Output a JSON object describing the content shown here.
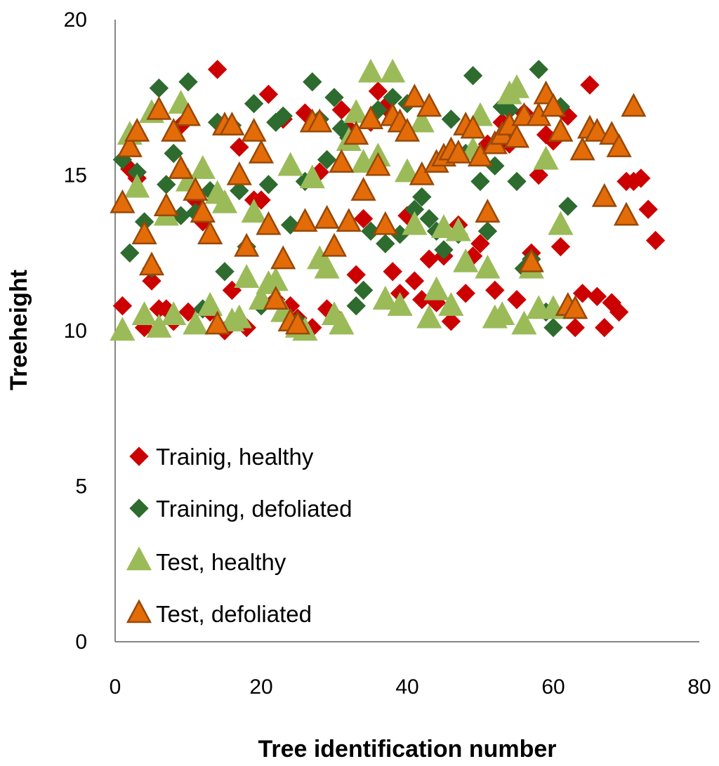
{
  "chart_data": {
    "type": "scatter",
    "title": "",
    "xlabel": "Tree identification number",
    "ylabel": "Treeheight",
    "xlim": [
      0,
      80
    ],
    "ylim": [
      0,
      20
    ],
    "xticks": [
      0,
      20,
      40,
      60,
      80
    ],
    "yticks": [
      0,
      5,
      10,
      15,
      20
    ],
    "grid": false,
    "legend_position": "inside-lower-left",
    "series": [
      {
        "name": "Trainig, healthy",
        "marker": "diamond",
        "color": "#cc0000",
        "points": [
          [
            1,
            10.8
          ],
          [
            2,
            15.2
          ],
          [
            3,
            14.9
          ],
          [
            4,
            10.1
          ],
          [
            5,
            11.6
          ],
          [
            6,
            10.7
          ],
          [
            7,
            10.7
          ],
          [
            8,
            10.3
          ],
          [
            9,
            16.6
          ],
          [
            10,
            10.6
          ],
          [
            11,
            14.2
          ],
          [
            12,
            13.5
          ],
          [
            13,
            10.6
          ],
          [
            14,
            18.4
          ],
          [
            15,
            10.0
          ],
          [
            16,
            11.3
          ],
          [
            17,
            15.9
          ],
          [
            18,
            10.1
          ],
          [
            19,
            14.2
          ],
          [
            20,
            14.2
          ],
          [
            21,
            17.6
          ],
          [
            22,
            11.0
          ],
          [
            23,
            16.8
          ],
          [
            24,
            10.8
          ],
          [
            25,
            10.4
          ],
          [
            26,
            17.0
          ],
          [
            27,
            10.1
          ],
          [
            28,
            15.1
          ],
          [
            29,
            10.7
          ],
          [
            30,
            10.5
          ],
          [
            31,
            17.1
          ],
          [
            32,
            16.5
          ],
          [
            33,
            11.8
          ],
          [
            34,
            13.6
          ],
          [
            35,
            16.7
          ],
          [
            36,
            17.7
          ],
          [
            37,
            17.2
          ],
          [
            38,
            11.9
          ],
          [
            39,
            11.2
          ],
          [
            40,
            13.7
          ],
          [
            41,
            11.6
          ],
          [
            42,
            11.0
          ],
          [
            43,
            12.3
          ],
          [
            44,
            10.9
          ],
          [
            45,
            12.4
          ],
          [
            46,
            10.3
          ],
          [
            47,
            13.4
          ],
          [
            48,
            11.2
          ],
          [
            49,
            12.4
          ],
          [
            50,
            12.8
          ],
          [
            51,
            16.0
          ],
          [
            52,
            11.3
          ],
          [
            53,
            16.7
          ],
          [
            54,
            16.0
          ],
          [
            55,
            11.0
          ],
          [
            56,
            17.0
          ],
          [
            57,
            12.5
          ],
          [
            58,
            15.0
          ],
          [
            59,
            16.3
          ],
          [
            60,
            16.1
          ],
          [
            61,
            12.7
          ],
          [
            62,
            16.9
          ],
          [
            63,
            10.1
          ],
          [
            64,
            11.2
          ],
          [
            65,
            17.9
          ],
          [
            66,
            11.1
          ],
          [
            67,
            10.1
          ],
          [
            68,
            10.9
          ],
          [
            69,
            10.6
          ],
          [
            70,
            14.8
          ],
          [
            71,
            14.8
          ],
          [
            72,
            14.9
          ],
          [
            73,
            13.9
          ],
          [
            74,
            12.9
          ]
        ]
      },
      {
        "name": "Training, defoliated",
        "marker": "diamond",
        "color": "#2e6b2e",
        "points": [
          [
            1,
            15.5
          ],
          [
            2,
            12.5
          ],
          [
            3,
            15.1
          ],
          [
            4,
            13.5
          ],
          [
            5,
            12.0
          ],
          [
            6,
            17.8
          ],
          [
            7,
            14.7
          ],
          [
            8,
            15.7
          ],
          [
            9,
            13.7
          ],
          [
            10,
            18.0
          ],
          [
            11,
            13.8
          ],
          [
            12,
            10.7
          ],
          [
            13,
            14.5
          ],
          [
            14,
            16.7
          ],
          [
            15,
            11.9
          ],
          [
            16,
            16.6
          ],
          [
            17,
            14.5
          ],
          [
            18,
            12.7
          ],
          [
            19,
            17.3
          ],
          [
            20,
            10.8
          ],
          [
            21,
            14.7
          ],
          [
            22,
            16.7
          ],
          [
            23,
            16.9
          ],
          [
            24,
            13.4
          ],
          [
            25,
            10.3
          ],
          [
            26,
            14.8
          ],
          [
            27,
            18.0
          ],
          [
            28,
            16.8
          ],
          [
            29,
            15.5
          ],
          [
            30,
            17.5
          ],
          [
            31,
            16.5
          ],
          [
            32,
            16.2
          ],
          [
            33,
            10.8
          ],
          [
            34,
            11.3
          ],
          [
            35,
            13.2
          ],
          [
            36,
            17.1
          ],
          [
            37,
            12.8
          ],
          [
            38,
            17.5
          ],
          [
            39,
            13.1
          ],
          [
            40,
            17.3
          ],
          [
            41,
            13.9
          ],
          [
            42,
            14.3
          ],
          [
            43,
            13.6
          ],
          [
            44,
            13.2
          ],
          [
            45,
            12.6
          ],
          [
            46,
            16.8
          ],
          [
            47,
            13.1
          ],
          [
            48,
            15.7
          ],
          [
            49,
            18.2
          ],
          [
            50,
            14.8
          ],
          [
            51,
            13.2
          ],
          [
            52,
            15.3
          ],
          [
            53,
            17.2
          ],
          [
            54,
            17.1
          ],
          [
            55,
            14.8
          ],
          [
            56,
            12.0
          ],
          [
            57,
            12.3
          ],
          [
            58,
            18.4
          ],
          [
            59,
            10.6
          ],
          [
            60,
            10.1
          ],
          [
            61,
            17.2
          ],
          [
            62,
            14.0
          ]
        ]
      },
      {
        "name": "Test, healthy",
        "marker": "triangle",
        "color": "#9bbb59",
        "points": [
          [
            1,
            10.0
          ],
          [
            2,
            16.3
          ],
          [
            3,
            14.6
          ],
          [
            4,
            10.5
          ],
          [
            5,
            17.0
          ],
          [
            6,
            10.1
          ],
          [
            7,
            13.7
          ],
          [
            8,
            10.5
          ],
          [
            9,
            17.3
          ],
          [
            10,
            14.8
          ],
          [
            11,
            10.2
          ],
          [
            12,
            15.2
          ],
          [
            13,
            10.8
          ],
          [
            14,
            14.4
          ],
          [
            15,
            14.1
          ],
          [
            16,
            10.3
          ],
          [
            17,
            10.4
          ],
          [
            18,
            11.7
          ],
          [
            19,
            13.8
          ],
          [
            20,
            11.0
          ],
          [
            21,
            11.5
          ],
          [
            22,
            11.6
          ],
          [
            23,
            10.6
          ],
          [
            24,
            15.3
          ],
          [
            25,
            10.1
          ],
          [
            26,
            10.0
          ],
          [
            27,
            14.9
          ],
          [
            28,
            12.3
          ],
          [
            29,
            12.0
          ],
          [
            30,
            10.5
          ],
          [
            31,
            10.2
          ],
          [
            32,
            16.1
          ],
          [
            33,
            17.0
          ],
          [
            34,
            15.4
          ],
          [
            35,
            18.3
          ],
          [
            36,
            15.6
          ],
          [
            37,
            11.0
          ],
          [
            38,
            18.3
          ],
          [
            39,
            10.8
          ],
          [
            40,
            15.1
          ],
          [
            41,
            13.4
          ],
          [
            42,
            16.7
          ],
          [
            43,
            10.4
          ],
          [
            44,
            11.3
          ],
          [
            45,
            13.3
          ],
          [
            46,
            10.8
          ],
          [
            47,
            13.2
          ],
          [
            48,
            12.2
          ],
          [
            49,
            15.8
          ],
          [
            50,
            16.9
          ],
          [
            51,
            12.0
          ],
          [
            52,
            10.4
          ],
          [
            53,
            10.5
          ],
          [
            54,
            17.6
          ],
          [
            55,
            17.8
          ],
          [
            56,
            10.2
          ],
          [
            57,
            12.0
          ],
          [
            58,
            10.7
          ],
          [
            59,
            15.5
          ],
          [
            60,
            10.7
          ],
          [
            61,
            13.4
          ]
        ]
      },
      {
        "name": "Test, defoliated",
        "marker": "triangle",
        "color": "#e36c09",
        "points": [
          [
            1,
            14.1
          ],
          [
            2,
            15.9
          ],
          [
            3,
            16.4
          ],
          [
            4,
            13.1
          ],
          [
            5,
            12.1
          ],
          [
            6,
            17.1
          ],
          [
            7,
            14.0
          ],
          [
            8,
            16.4
          ],
          [
            9,
            15.2
          ],
          [
            10,
            16.9
          ],
          [
            11,
            14.5
          ],
          [
            12,
            13.8
          ],
          [
            13,
            13.1
          ],
          [
            14,
            10.2
          ],
          [
            15,
            16.6
          ],
          [
            16,
            16.6
          ],
          [
            17,
            15.0
          ],
          [
            18,
            12.7
          ],
          [
            19,
            16.4
          ],
          [
            20,
            15.7
          ],
          [
            21,
            13.4
          ],
          [
            22,
            11.0
          ],
          [
            23,
            12.3
          ],
          [
            24,
            10.3
          ],
          [
            25,
            10.2
          ],
          [
            26,
            13.5
          ],
          [
            27,
            16.7
          ],
          [
            28,
            16.7
          ],
          [
            29,
            13.6
          ],
          [
            30,
            12.7
          ],
          [
            31,
            15.4
          ],
          [
            32,
            13.5
          ],
          [
            33,
            16.3
          ],
          [
            34,
            14.5
          ],
          [
            35,
            16.8
          ],
          [
            36,
            15.3
          ],
          [
            37,
            13.4
          ],
          [
            38,
            16.9
          ],
          [
            39,
            16.7
          ],
          [
            40,
            16.4
          ],
          [
            41,
            17.5
          ],
          [
            42,
            15.0
          ],
          [
            43,
            17.2
          ],
          [
            44,
            15.4
          ],
          [
            45,
            15.6
          ],
          [
            46,
            15.8
          ],
          [
            47,
            15.7
          ],
          [
            48,
            16.6
          ],
          [
            49,
            16.5
          ],
          [
            50,
            15.6
          ],
          [
            51,
            13.8
          ],
          [
            52,
            16.0
          ],
          [
            53,
            16.3
          ],
          [
            54,
            16.6
          ],
          [
            55,
            16.2
          ],
          [
            56,
            16.9
          ],
          [
            57,
            12.2
          ],
          [
            58,
            16.9
          ],
          [
            59,
            17.6
          ],
          [
            60,
            17.2
          ],
          [
            61,
            16.4
          ],
          [
            62,
            10.8
          ],
          [
            63,
            10.7
          ],
          [
            64,
            15.8
          ],
          [
            65,
            16.5
          ],
          [
            66,
            16.4
          ],
          [
            67,
            14.3
          ],
          [
            68,
            16.3
          ],
          [
            69,
            15.9
          ],
          [
            70,
            13.7
          ],
          [
            71,
            17.2
          ]
        ]
      }
    ]
  }
}
